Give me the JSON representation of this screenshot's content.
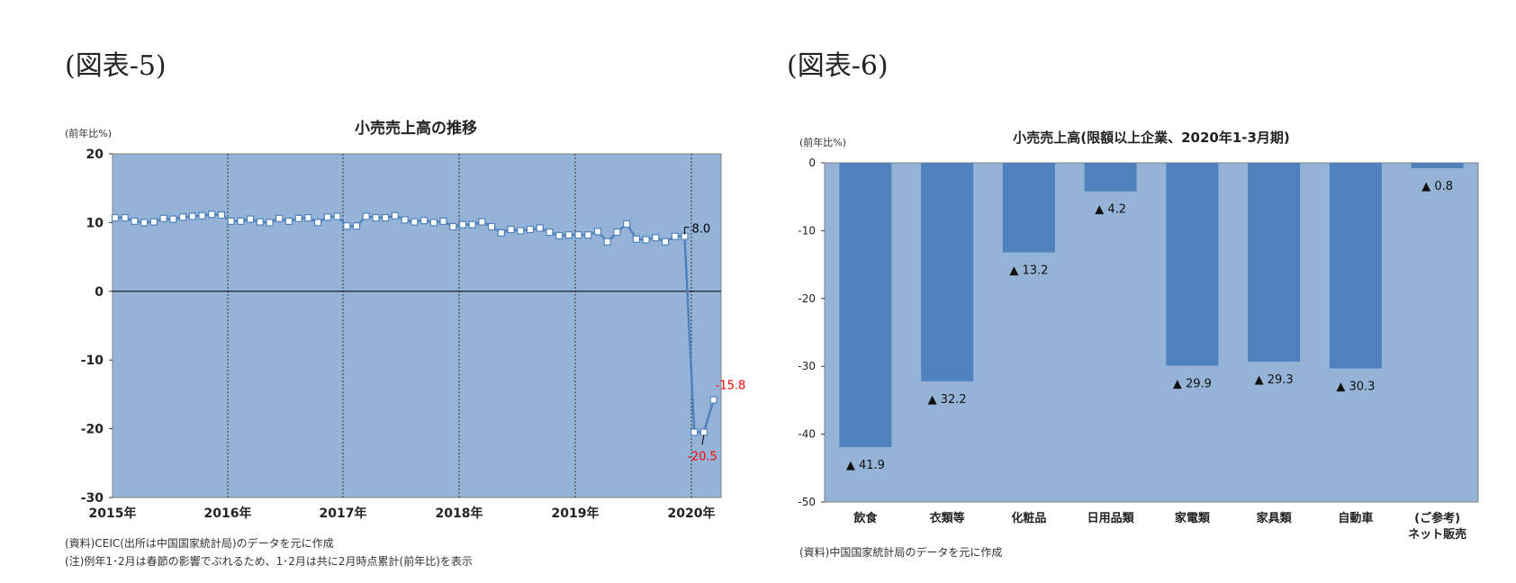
{
  "figure_labels": [
    "(図表-5)",
    "(図表-6)"
  ],
  "chart_data": [
    {
      "type": "line",
      "title": "小売売上高の推移",
      "ylabel": "(前年比%)",
      "ylim": [
        -30,
        20
      ],
      "yticks": [
        "20",
        "10",
        "0",
        "-10",
        "-20",
        "-30"
      ],
      "xticks": [
        "2015年",
        "2016年",
        "2017年",
        "2018年",
        "2019年",
        "2020年"
      ],
      "grid": "vertical dotted lines at each year",
      "series": [
        {
          "color": "#4f81bd",
          "start": "2015-01",
          "values": [
            10.7,
            10.7,
            10.2,
            10.0,
            10.1,
            10.6,
            10.5,
            10.8,
            10.9,
            11.0,
            11.2,
            11.1,
            10.2,
            10.2,
            10.5,
            10.1,
            10.0,
            10.6,
            10.2,
            10.6,
            10.7,
            10.0,
            10.8,
            10.9,
            9.5,
            9.5,
            10.9,
            10.7,
            10.7,
            11.0,
            10.4,
            10.1,
            10.3,
            10.0,
            10.2,
            9.4,
            9.7,
            9.7,
            10.1,
            9.4,
            8.5,
            9.0,
            8.8,
            9.0,
            9.2,
            8.6,
            8.1,
            8.2,
            8.2,
            8.2,
            8.7,
            7.2,
            8.6,
            9.8,
            7.6,
            7.5,
            7.8,
            7.2,
            8.0,
            8.0,
            -20.5,
            -20.5,
            -15.8
          ]
        }
      ],
      "annotations": [
        {
          "text": "8.0",
          "color": "#000000"
        },
        {
          "text": "-20.5",
          "color": "#ff0000"
        },
        {
          "text": "-15.8",
          "color": "#ff0000"
        }
      ],
      "notes": [
        "(資料)CEIC(出所は中国国家統計局)のデータを元に作成",
        "(注)例年1･2月は春節の影響でぶれるため、1･2月は共に2月時点累計(前年比)を表示"
      ],
      "background": "#95b3d7"
    },
    {
      "type": "bar",
      "title": "小売売上高(限額以上企業、2020年1-3月期)",
      "ylabel": "(前年比%)",
      "ylim": [
        -50,
        0
      ],
      "yticks": [
        "0",
        "-10",
        "-20",
        "-30",
        "-40",
        "-50"
      ],
      "categories": [
        "飲食",
        "衣類等",
        "化粧品",
        "日用品類",
        "家電類",
        "家具類",
        "自動車",
        "(ご参考)\nネット販売"
      ],
      "values": [
        -41.9,
        -32.2,
        -13.2,
        -4.2,
        -29.9,
        -29.3,
        -30.3,
        -0.8
      ],
      "data_labels": [
        "▲ 41.9",
        "▲ 32.2",
        "▲ 13.2",
        "▲ 4.2",
        "▲ 29.9",
        "▲ 29.3",
        "▲ 30.3",
        "▲ 0.8"
      ],
      "bar_color": "#4f81bd",
      "background": "#95b3d7",
      "notes": [
        "(資料)中国国家統計局のデータを元に作成"
      ]
    }
  ]
}
